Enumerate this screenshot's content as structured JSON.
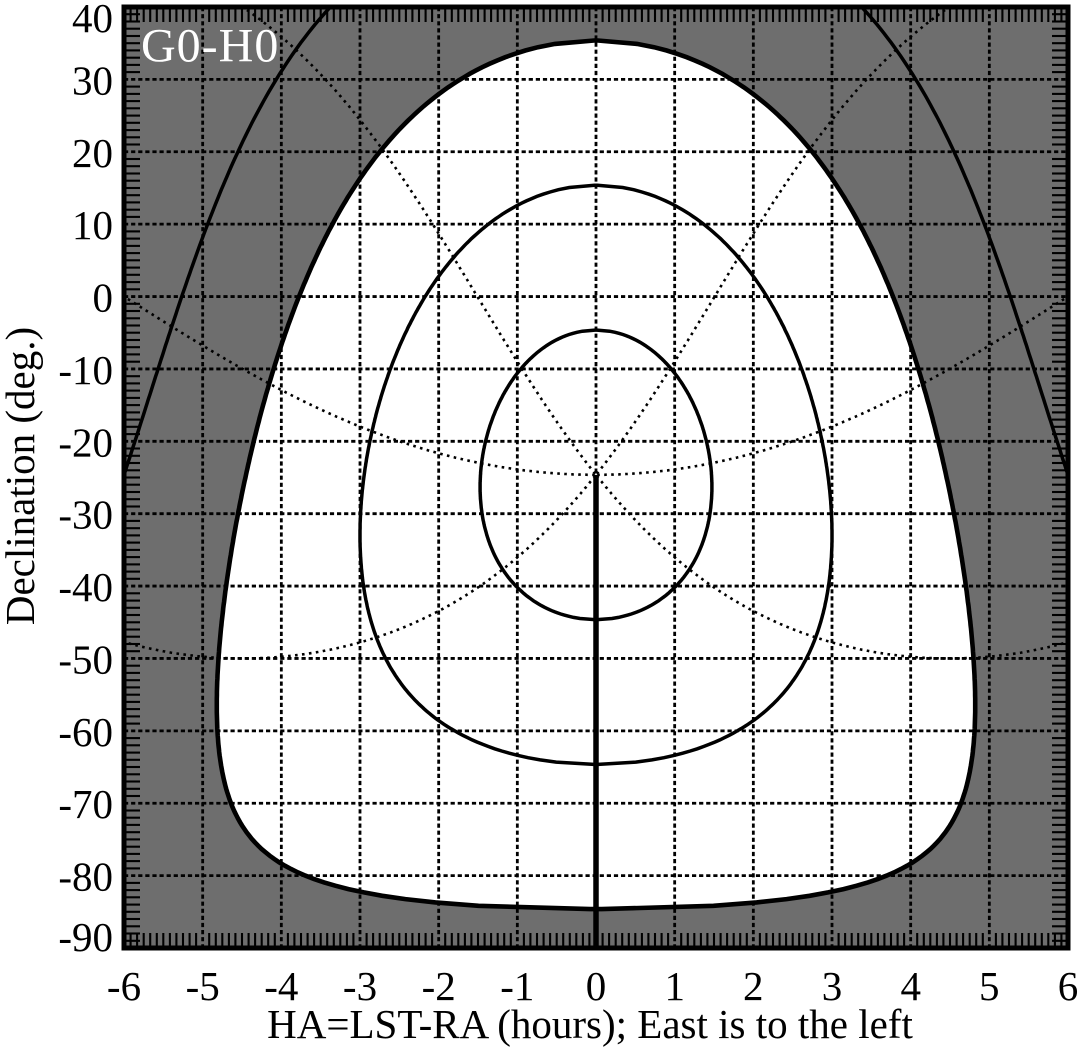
{
  "figure": {
    "corner_label": "G0-H0",
    "xlabel": "HA=LST-RA (hours); East is to the left",
    "ylabel": "Declination (deg.)"
  },
  "chart_data": {
    "type": "contour",
    "title": "G0-H0",
    "xlabel": "HA=LST-RA (hours); East is to the left",
    "ylabel": "Declination (deg.)",
    "xlim": [
      -6,
      6
    ],
    "ylim": [
      -90,
      40
    ],
    "grid": true,
    "x_ticks": {
      "values": [
        -6,
        -5,
        -4,
        -3,
        -2,
        -1,
        0,
        1,
        2,
        3,
        4,
        5,
        6
      ],
      "labels": [
        "-6",
        "-5",
        "-4",
        "-3",
        "-2",
        "-1",
        "0",
        "1",
        "2",
        "3",
        "4",
        "5",
        "6"
      ]
    },
    "y_ticks": {
      "values": [
        40,
        30,
        20,
        10,
        0,
        -10,
        -20,
        -30,
        -40,
        -50,
        -60,
        -70,
        -80,
        -90
      ],
      "labels": [
        "40",
        "30",
        "20",
        "10",
        "0",
        "-10",
        "-20",
        "-30",
        "-40",
        "-50",
        "-60",
        "-70",
        "-80",
        "-90"
      ]
    },
    "x_minor_step_hours": 0.083333,
    "y_minor_step_deg": 1,
    "site_latitude_deg": -24.63,
    "elevation_contours_deg": [
      10,
      30,
      50,
      70
    ],
    "observable_boundary_elevation_deg": 30,
    "azimuth_curves_deg": [
      45,
      90,
      135,
      225,
      270,
      315
    ],
    "zenith_point": {
      "ha_hours": 0,
      "dec_deg": -24.63
    },
    "meridian_line": {
      "ha_hours": 0,
      "dec_from_deg": -24.63,
      "dec_to_deg": -90
    },
    "colors": {
      "unobservable_fill": "#6e6e6e",
      "observable_fill": "#ffffff",
      "line": "#000000",
      "corner_label": "#ffffff",
      "background": "#ffffff"
    }
  }
}
